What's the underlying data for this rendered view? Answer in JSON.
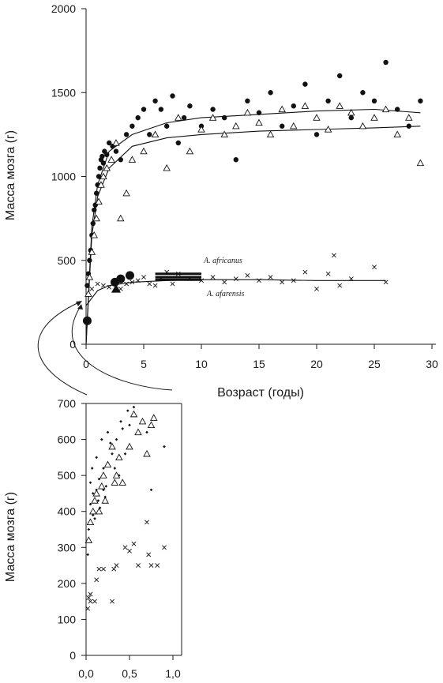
{
  "chart_data": [
    {
      "type": "scatter",
      "title": "",
      "xlabel": "Возраст (годы)",
      "ylabel": "Масса мозга (г)",
      "xlim": [
        0,
        30
      ],
      "ylim": [
        0,
        2000
      ],
      "xticks": [
        0,
        5,
        10,
        15,
        20,
        25,
        30
      ],
      "yticks": [
        0,
        500,
        1000,
        1500,
        2000
      ],
      "grid": false,
      "annotations": [
        "A. africanus",
        "A. afarensis"
      ],
      "series": [
        {
          "marker": "filled-circle",
          "points": [
            [
              0.1,
              350
            ],
            [
              0.2,
              420
            ],
            [
              0.3,
              500
            ],
            [
              0.4,
              560
            ],
            [
              0.5,
              650
            ],
            [
              0.6,
              720
            ],
            [
              0.7,
              800
            ],
            [
              0.8,
              830
            ],
            [
              0.9,
              900
            ],
            [
              1.0,
              950
            ],
            [
              1.1,
              1000
            ],
            [
              1.2,
              1050
            ],
            [
              1.3,
              1100
            ],
            [
              1.4,
              1120
            ],
            [
              1.5,
              1080
            ],
            [
              1.6,
              1150
            ],
            [
              1.8,
              1130
            ],
            [
              2.0,
              1200
            ],
            [
              2.3,
              1180
            ],
            [
              2.6,
              1150
            ],
            [
              3.0,
              1100
            ],
            [
              3.5,
              1250
            ],
            [
              4.0,
              1300
            ],
            [
              4.5,
              1350
            ],
            [
              5.0,
              1400
            ],
            [
              5.5,
              1250
            ],
            [
              6.0,
              1450
            ],
            [
              6.5,
              1400
            ],
            [
              7.0,
              1300
            ],
            [
              7.5,
              1480
            ],
            [
              8.0,
              1200
            ],
            [
              8.5,
              1350
            ],
            [
              9.0,
              1420
            ],
            [
              10.0,
              1300
            ],
            [
              11.0,
              1400
            ],
            [
              12.0,
              1350
            ],
            [
              13.0,
              1100
            ],
            [
              14.0,
              1450
            ],
            [
              15.0,
              1380
            ],
            [
              16.0,
              1500
            ],
            [
              17.0,
              1300
            ],
            [
              18.0,
              1420
            ],
            [
              19.0,
              1550
            ],
            [
              20.0,
              1250
            ],
            [
              21.0,
              1450
            ],
            [
              22.0,
              1600
            ],
            [
              23.0,
              1350
            ],
            [
              24.0,
              1500
            ],
            [
              25.0,
              1450
            ],
            [
              26.0,
              1680
            ],
            [
              27.0,
              1400
            ],
            [
              28.0,
              1300
            ],
            [
              29.0,
              1450
            ]
          ]
        },
        {
          "marker": "open-triangle",
          "points": [
            [
              0.2,
              300
            ],
            [
              0.3,
              400
            ],
            [
              0.5,
              550
            ],
            [
              0.7,
              650
            ],
            [
              0.9,
              750
            ],
            [
              1.1,
              850
            ],
            [
              1.3,
              950
            ],
            [
              1.5,
              1000
            ],
            [
              1.8,
              1050
            ],
            [
              2.2,
              1100
            ],
            [
              2.6,
              1200
            ],
            [
              3.0,
              750
            ],
            [
              3.5,
              900
            ],
            [
              4.0,
              1100
            ],
            [
              5.0,
              1150
            ],
            [
              6.0,
              1250
            ],
            [
              7.0,
              1050
            ],
            [
              8.0,
              1350
            ],
            [
              9.0,
              1150
            ],
            [
              10.0,
              1280
            ],
            [
              11.0,
              1350
            ],
            [
              12.0,
              1250
            ],
            [
              13.0,
              1300
            ],
            [
              14.0,
              1380
            ],
            [
              15.0,
              1320
            ],
            [
              16.0,
              1250
            ],
            [
              17.0,
              1400
            ],
            [
              18.0,
              1300
            ],
            [
              19.0,
              1420
            ],
            [
              20.0,
              1350
            ],
            [
              21.0,
              1280
            ],
            [
              22.0,
              1420
            ],
            [
              23.0,
              1380
            ],
            [
              24.0,
              1300
            ],
            [
              25.0,
              1350
            ],
            [
              26.0,
              1400
            ],
            [
              27.0,
              1250
            ],
            [
              28.0,
              1350
            ],
            [
              29.0,
              1080
            ]
          ]
        },
        {
          "marker": "cross",
          "points": [
            [
              0.5,
              330
            ],
            [
              1.0,
              360
            ],
            [
              1.5,
              350
            ],
            [
              2.0,
              340
            ],
            [
              2.5,
              360
            ],
            [
              3.0,
              330
            ],
            [
              3.5,
              360
            ],
            [
              4.0,
              370
            ],
            [
              4.5,
              380
            ],
            [
              5.0,
              400
            ],
            [
              5.5,
              360
            ],
            [
              6.0,
              350
            ],
            [
              6.5,
              390
            ],
            [
              7.0,
              430
            ],
            [
              7.5,
              360
            ],
            [
              8.0,
              420
            ],
            [
              9.0,
              390
            ],
            [
              10.0,
              380
            ],
            [
              11.0,
              400
            ],
            [
              12.0,
              370
            ],
            [
              13.0,
              390
            ],
            [
              14.0,
              410
            ],
            [
              15.0,
              380
            ],
            [
              16.0,
              400
            ],
            [
              17.0,
              370
            ],
            [
              18.0,
              380
            ],
            [
              19.0,
              430
            ],
            [
              20.0,
              330
            ],
            [
              21.0,
              420
            ],
            [
              21.5,
              530
            ],
            [
              22.0,
              350
            ],
            [
              23.0,
              390
            ],
            [
              25.0,
              460
            ],
            [
              26.0,
              370
            ]
          ]
        },
        {
          "marker": "large-filled-circle",
          "points": [
            [
              0.1,
              140
            ],
            [
              2.5,
              370
            ],
            [
              3.0,
              390
            ],
            [
              3.8,
              410
            ]
          ]
        },
        {
          "marker": "large-filled-triangle",
          "points": [
            [
              2.6,
              330
            ]
          ]
        }
      ],
      "curves": [
        {
          "marker": "line",
          "points": [
            [
              0,
              0
            ],
            [
              0.5,
              700
            ],
            [
              1,
              950
            ],
            [
              2,
              1150
            ],
            [
              4,
              1250
            ],
            [
              7,
              1320
            ],
            [
              10,
              1350
            ],
            [
              15,
              1370
            ],
            [
              20,
              1390
            ],
            [
              25,
              1400
            ],
            [
              29,
              1380
            ]
          ]
        },
        {
          "marker": "line",
          "points": [
            [
              0,
              0
            ],
            [
              0.5,
              650
            ],
            [
              1,
              880
            ],
            [
              2,
              1050
            ],
            [
              4,
              1180
            ],
            [
              7,
              1230
            ],
            [
              10,
              1250
            ],
            [
              15,
              1270
            ],
            [
              20,
              1280
            ],
            [
              25,
              1290
            ],
            [
              29,
              1300
            ]
          ]
        },
        {
          "marker": "line",
          "points": [
            [
              0,
              230
            ],
            [
              1,
              320
            ],
            [
              2,
              350
            ],
            [
              4,
              370
            ],
            [
              7,
              380
            ],
            [
              10,
              385
            ],
            [
              15,
              385
            ],
            [
              20,
              380
            ],
            [
              26,
              380
            ]
          ]
        }
      ],
      "bars": [
        {
          "label": "A. africanus",
          "x": [
            6,
            10
          ],
          "y": 420
        },
        {
          "label": "A. afarensis",
          "x": [
            6,
            10
          ],
          "y": 400
        },
        {
          "label": "",
          "x": [
            6,
            10
          ],
          "y": 385
        }
      ]
    },
    {
      "type": "scatter",
      "title": "",
      "xlabel": "",
      "ylabel": "Масса мозга (г)",
      "xlim": [
        0,
        1.1
      ],
      "ylim": [
        0,
        700
      ],
      "xticks": [
        0.0,
        0.5,
        1.0
      ],
      "xtick_labels": [
        "0,0",
        "0,5",
        "1,0"
      ],
      "yticks": [
        0,
        100,
        200,
        300,
        400,
        500,
        600,
        700
      ],
      "grid": false,
      "series": [
        {
          "marker": "small-diamond",
          "points": [
            [
              0.02,
              280
            ],
            [
              0.03,
              350
            ],
            [
              0.05,
              420
            ],
            [
              0.05,
              480
            ],
            [
              0.07,
              520
            ],
            [
              0.08,
              390
            ],
            [
              0.08,
              450
            ],
            [
              0.1,
              380
            ],
            [
              0.12,
              460
            ],
            [
              0.12,
              550
            ],
            [
              0.14,
              430
            ],
            [
              0.15,
              490
            ],
            [
              0.16,
              410
            ],
            [
              0.18,
              600
            ],
            [
              0.2,
              460
            ],
            [
              0.2,
              520
            ],
            [
              0.22,
              440
            ],
            [
              0.23,
              470
            ],
            [
              0.25,
              620
            ],
            [
              0.28,
              590
            ],
            [
              0.3,
              560
            ],
            [
              0.33,
              520
            ],
            [
              0.35,
              600
            ],
            [
              0.38,
              500
            ],
            [
              0.4,
              650
            ],
            [
              0.42,
              630
            ],
            [
              0.45,
              560
            ],
            [
              0.48,
              680
            ],
            [
              0.5,
              640
            ],
            [
              0.55,
              690
            ],
            [
              0.7,
              620
            ],
            [
              0.75,
              460
            ],
            [
              0.9,
              580
            ]
          ]
        },
        {
          "marker": "open-triangle",
          "points": [
            [
              0.03,
              320
            ],
            [
              0.05,
              370
            ],
            [
              0.08,
              400
            ],
            [
              0.1,
              430
            ],
            [
              0.12,
              450
            ],
            [
              0.15,
              400
            ],
            [
              0.18,
              470
            ],
            [
              0.2,
              500
            ],
            [
              0.22,
              430
            ],
            [
              0.25,
              530
            ],
            [
              0.3,
              580
            ],
            [
              0.33,
              480
            ],
            [
              0.35,
              500
            ],
            [
              0.38,
              550
            ],
            [
              0.42,
              480
            ],
            [
              0.5,
              580
            ],
            [
              0.55,
              670
            ],
            [
              0.6,
              620
            ],
            [
              0.65,
              650
            ],
            [
              0.7,
              560
            ],
            [
              0.75,
              640
            ],
            [
              0.78,
              660
            ]
          ]
        },
        {
          "marker": "cross",
          "points": [
            [
              0.02,
              130
            ],
            [
              0.03,
              160
            ],
            [
              0.05,
              170
            ],
            [
              0.05,
              150
            ],
            [
              0.1,
              150
            ],
            [
              0.12,
              210
            ],
            [
              0.15,
              240
            ],
            [
              0.2,
              240
            ],
            [
              0.3,
              150
            ],
            [
              0.32,
              240
            ],
            [
              0.35,
              250
            ],
            [
              0.45,
              300
            ],
            [
              0.5,
              290
            ],
            [
              0.55,
              310
            ],
            [
              0.6,
              250
            ],
            [
              0.7,
              370
            ],
            [
              0.72,
              280
            ],
            [
              0.75,
              250
            ],
            [
              0.82,
              250
            ],
            [
              0.9,
              300
            ]
          ]
        }
      ]
    }
  ]
}
